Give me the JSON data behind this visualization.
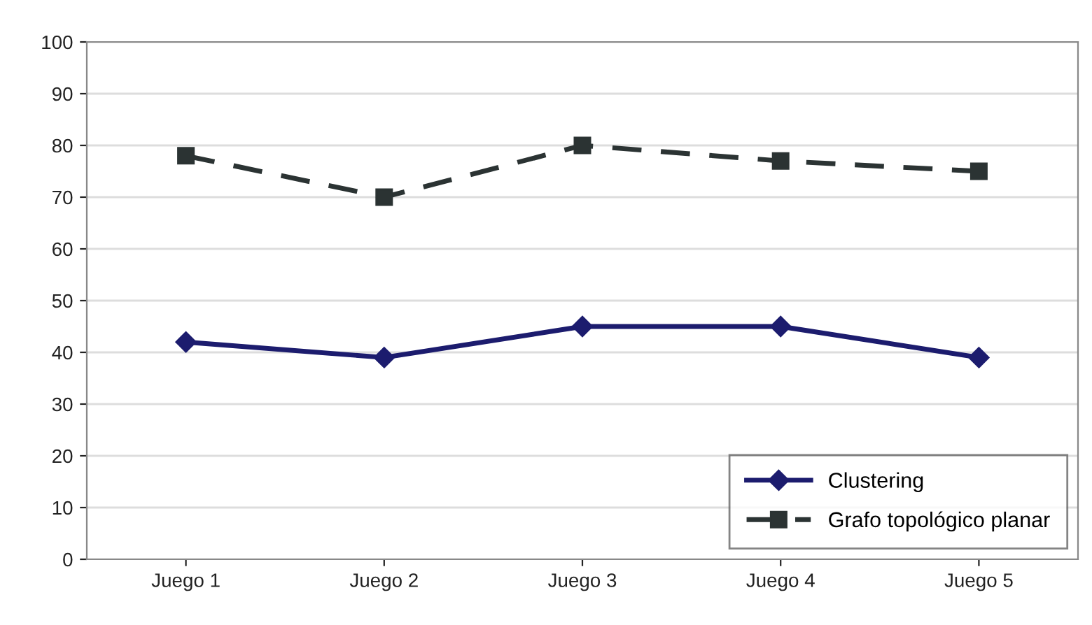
{
  "chart_data": {
    "type": "line",
    "categories": [
      "Juego 1",
      "Juego 2",
      "Juego 3",
      "Juego 4",
      "Juego 5"
    ],
    "series": [
      {
        "name": "Clustering",
        "color": "#1c1c6e",
        "values": [
          42,
          39,
          45,
          45,
          39
        ],
        "marker": "diamond",
        "line_style": "solid"
      },
      {
        "name": "Grafo topológico planar",
        "color": "#2b3333",
        "values": [
          78,
          70,
          80,
          77,
          75
        ],
        "marker": "square",
        "line_style": "dashed"
      }
    ],
    "ylim": [
      0,
      100
    ],
    "yticks": [
      0,
      10,
      20,
      30,
      40,
      50,
      60,
      70,
      80,
      90,
      100
    ],
    "grid": "y",
    "legend": "bottom right"
  }
}
